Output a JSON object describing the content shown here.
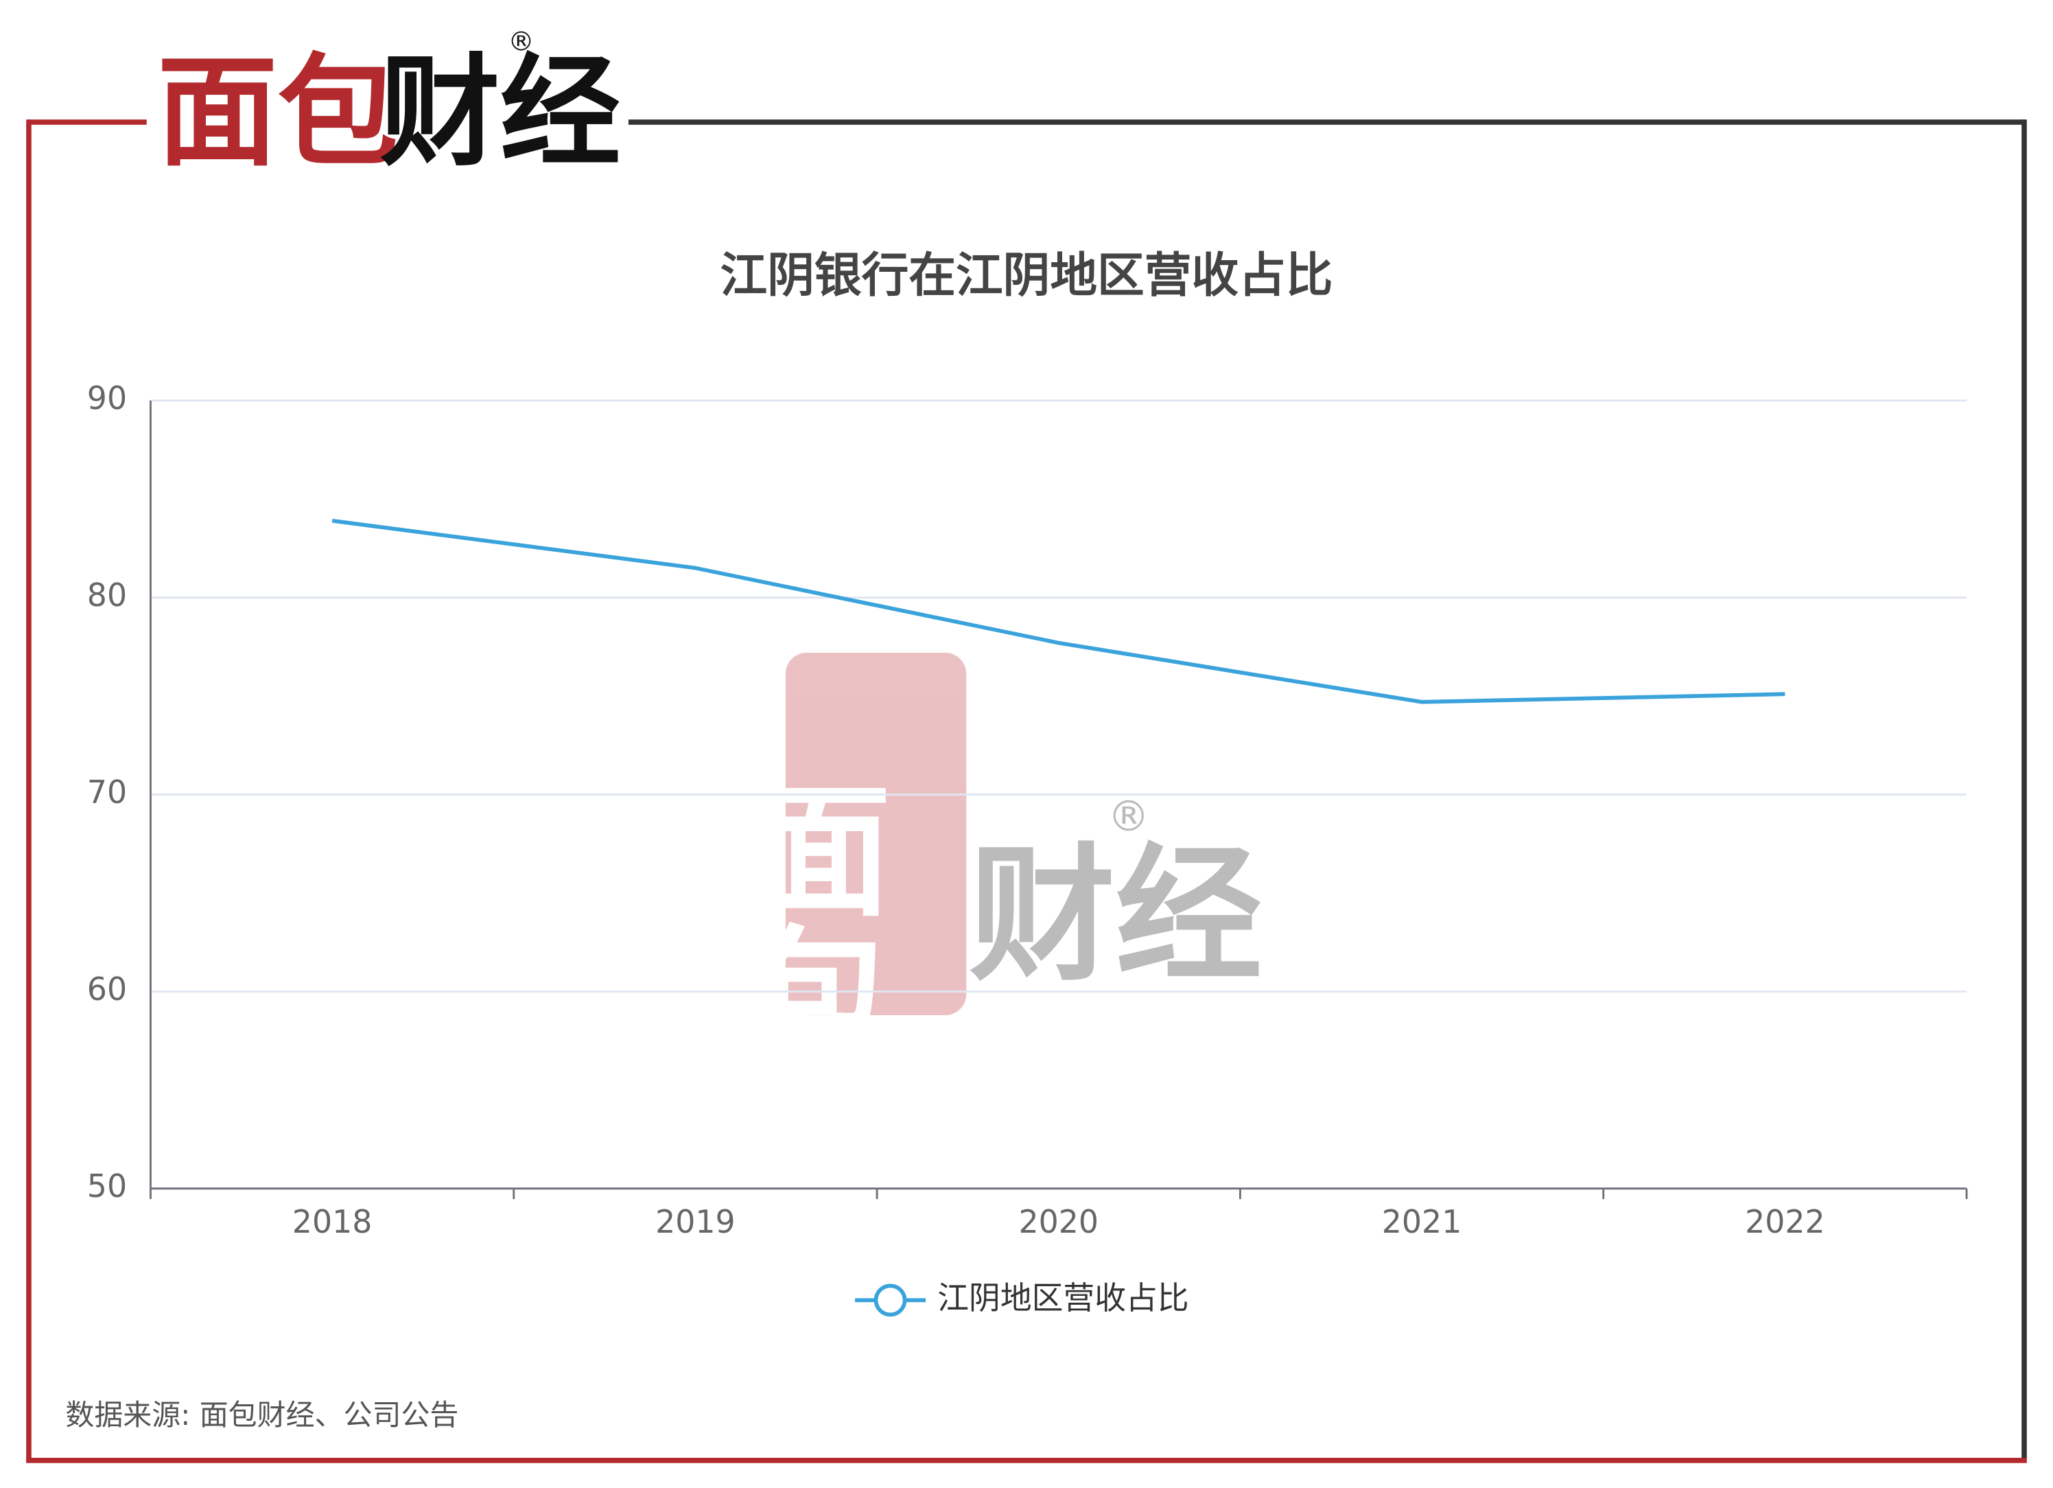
{
  "logo": {
    "part1": "面包",
    "part2": "财经",
    "mark": "®"
  },
  "chart_data": {
    "type": "line",
    "title": "江阴银行在江阴地区营收占比",
    "categories": [
      "2018",
      "2019",
      "2020",
      "2021",
      "2022"
    ],
    "series": [
      {
        "name": "江阴地区营收占比",
        "color": "#3ba3dc",
        "values": [
          83.9,
          81.5,
          77.7,
          74.7,
          75.1
        ]
      }
    ],
    "ylim": [
      50,
      90
    ],
    "yticks": [
      50,
      60,
      70,
      80,
      90
    ],
    "grid": true,
    "legend": "bottom"
  },
  "source": "数据来源: 面包财经、公司公告"
}
